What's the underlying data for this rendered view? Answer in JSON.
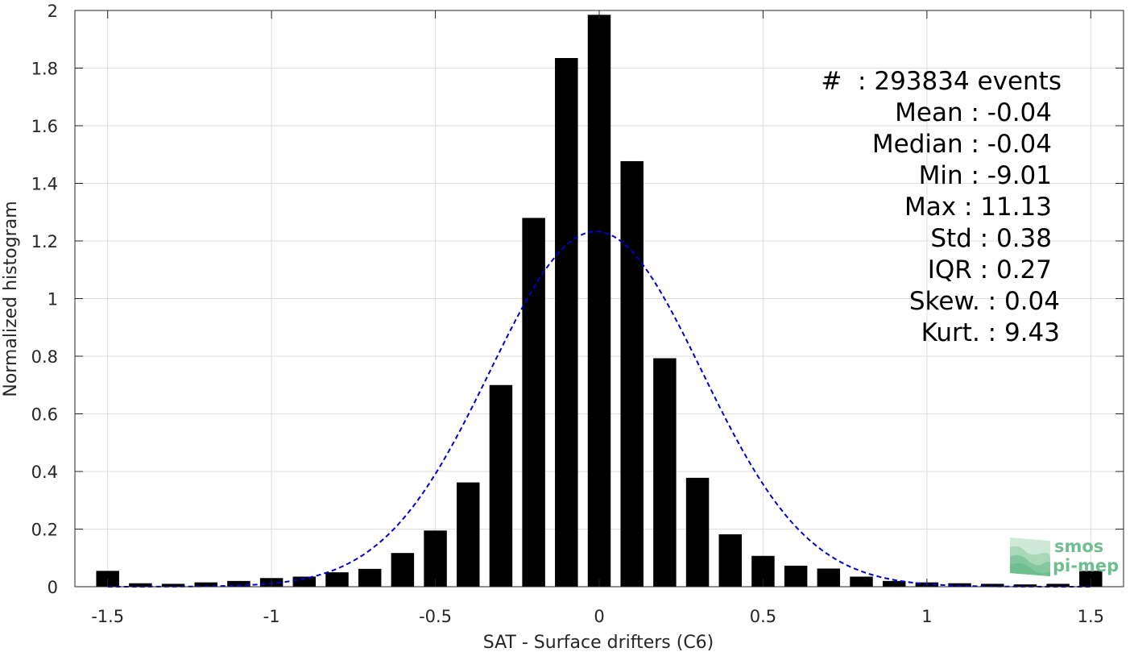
{
  "chart_data": {
    "type": "bar",
    "xlabel": "SAT - Surface drifters (C6)",
    "ylabel": "Normalized histogram",
    "xlim": [
      -1.6,
      1.6
    ],
    "ylim": [
      0,
      2
    ],
    "grid": true,
    "xticks": [
      -1.5,
      -1,
      -0.5,
      0,
      0.5,
      1,
      1.5
    ],
    "xtick_labels": [
      "-1.5",
      "-1",
      "-0.5",
      "0",
      "0.5",
      "1",
      "1.5"
    ],
    "yticks": [
      0,
      0.2,
      0.4,
      0.6,
      0.8,
      1,
      1.2,
      1.4,
      1.6,
      1.8,
      2
    ],
    "ytick_labels": [
      "0",
      "0.2",
      "0.4",
      "0.6",
      "0.8",
      "1",
      "1.2",
      "1.4",
      "1.6",
      "1.8",
      "2"
    ],
    "bar_color": "#000000",
    "bar_width": 0.07,
    "bars": {
      "x": [
        -1.5,
        -1.4,
        -1.3,
        -1.2,
        -1.1,
        -1.0,
        -0.9,
        -0.8,
        -0.7,
        -0.6,
        -0.5,
        -0.4,
        -0.3,
        -0.2,
        -0.1,
        0.0,
        0.1,
        0.2,
        0.3,
        0.4,
        0.5,
        0.6,
        0.7,
        0.8,
        0.9,
        1.0,
        1.1,
        1.2,
        1.3,
        1.4,
        1.5
      ],
      "values": [
        0.055,
        0.012,
        0.01,
        0.015,
        0.02,
        0.03,
        0.035,
        0.05,
        0.062,
        0.117,
        0.195,
        0.362,
        0.7,
        1.28,
        1.835,
        1.985,
        1.477,
        0.793,
        0.378,
        0.182,
        0.107,
        0.073,
        0.063,
        0.035,
        0.02,
        0.015,
        0.012,
        0.01,
        0.008,
        0.01,
        0.055
      ]
    },
    "fit_curve": {
      "type": "gaussian",
      "style": "dashed",
      "color": "#0000cc",
      "mean": -0.01,
      "std": 0.3234,
      "peak": 1.233
    },
    "stats": [
      "#  : 293834 events",
      "Mean : -0.04",
      "Median : -0.04",
      "Min : -9.01",
      "Max : 11.13",
      "Std : 0.38",
      "IQR : 0.27",
      "Skew. : 0.04",
      "Kurt. : 9.43"
    ]
  },
  "logo": {
    "line1": "smos",
    "line2": "pi-mep",
    "color": "#6fbe8f"
  }
}
